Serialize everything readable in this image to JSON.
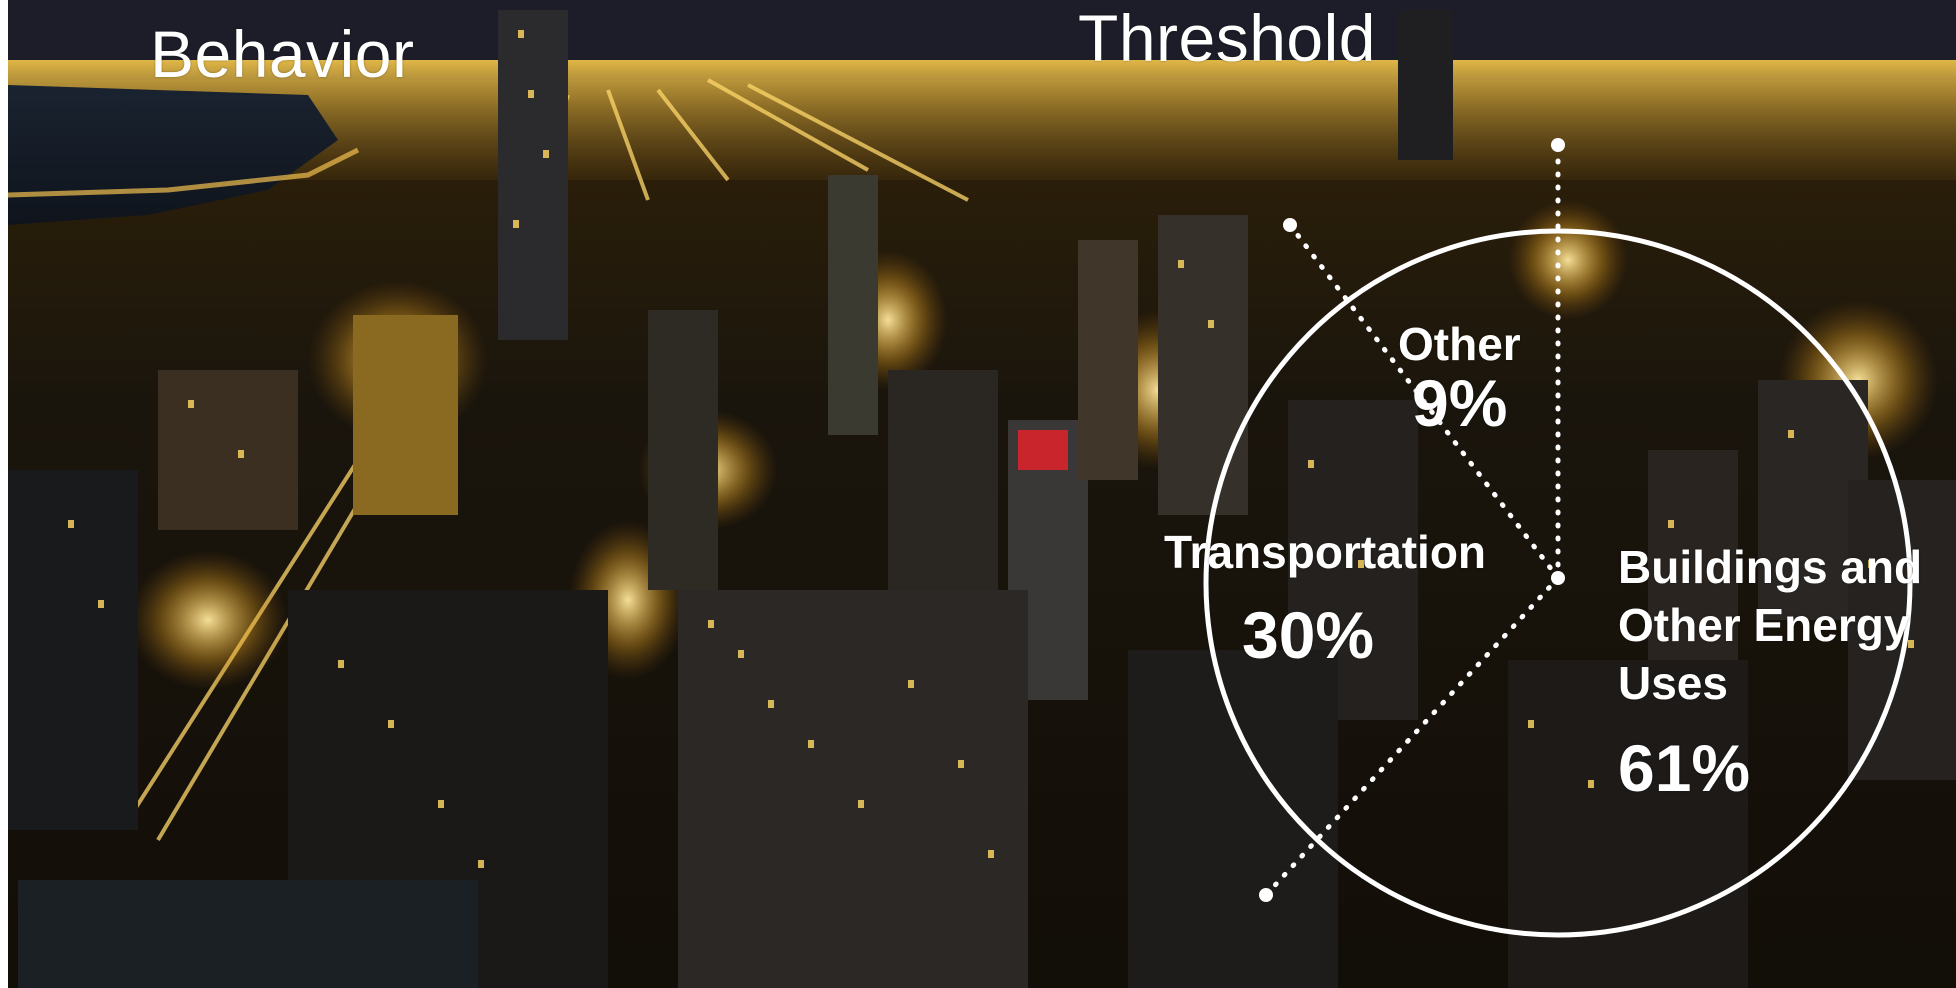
{
  "labels": {
    "behavior": "Behavior",
    "threshold": "Threshold"
  },
  "segments": [
    {
      "name": "Other",
      "percent": "9%"
    },
    {
      "name": "Transportation",
      "percent": "30%"
    },
    {
      "name": "Buildings and Other Energy Uses",
      "percent": "61%"
    }
  ],
  "colors": {
    "overlay_text": "#ffffff",
    "city_lights": "#f4c13a",
    "sky": "#1c1d28"
  }
}
